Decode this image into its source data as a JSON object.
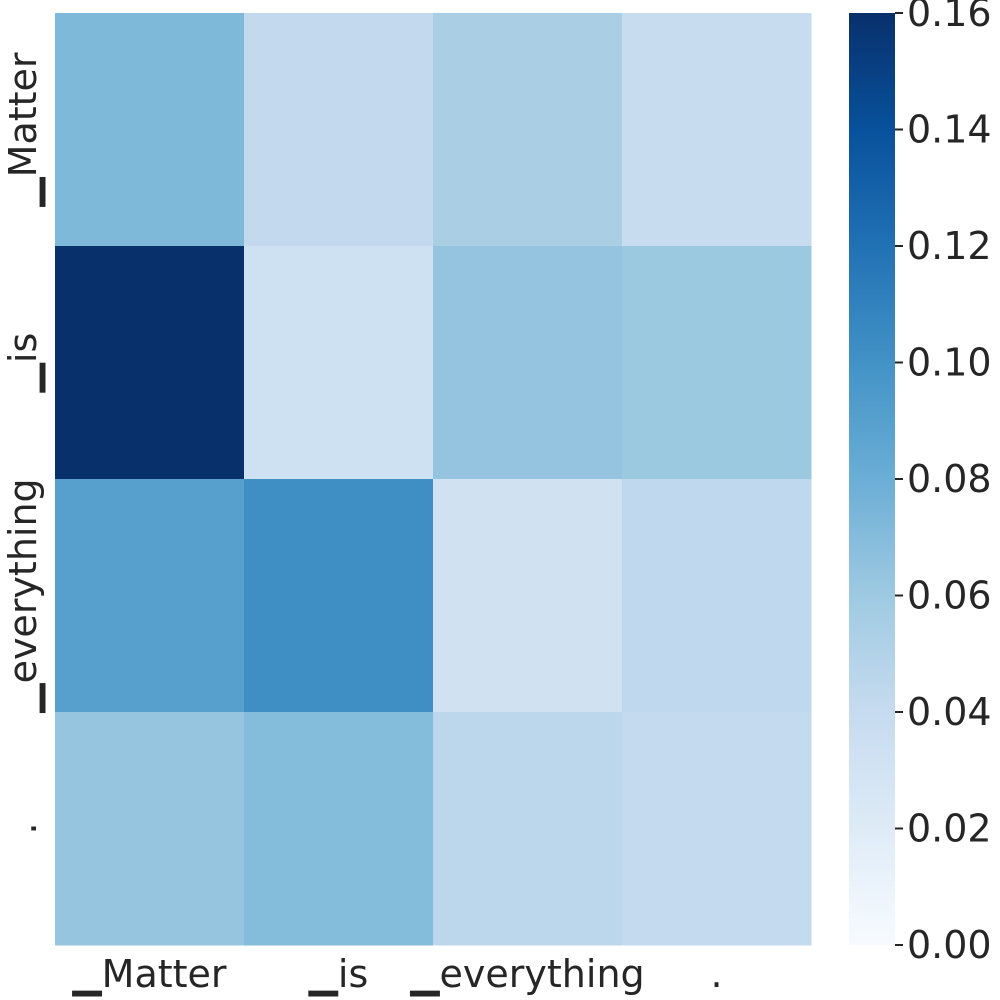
{
  "chart_data": {
    "type": "heatmap",
    "x_labels": [
      "▁Matter",
      "▁is",
      "▁everything",
      "."
    ],
    "y_labels": [
      "▁Matter",
      "▁is",
      "▁everything",
      "."
    ],
    "values": [
      [
        0.072,
        0.042,
        0.054,
        0.039
      ],
      [
        0.16,
        0.033,
        0.064,
        0.061
      ],
      [
        0.09,
        0.102,
        0.032,
        0.043
      ],
      [
        0.063,
        0.07,
        0.045,
        0.041
      ]
    ],
    "colorbar": {
      "min": 0.0,
      "max": 0.16,
      "ticks": [
        0.0,
        0.02,
        0.04,
        0.06,
        0.08,
        0.1,
        0.12,
        0.14,
        0.16
      ],
      "tick_labels": [
        "0.00",
        "0.02",
        "0.04",
        "0.06",
        "0.08",
        "0.10",
        "0.12",
        "0.14",
        "0.16"
      ],
      "colormap": "Blues"
    },
    "title": "",
    "xlabel": "",
    "ylabel": ""
  }
}
